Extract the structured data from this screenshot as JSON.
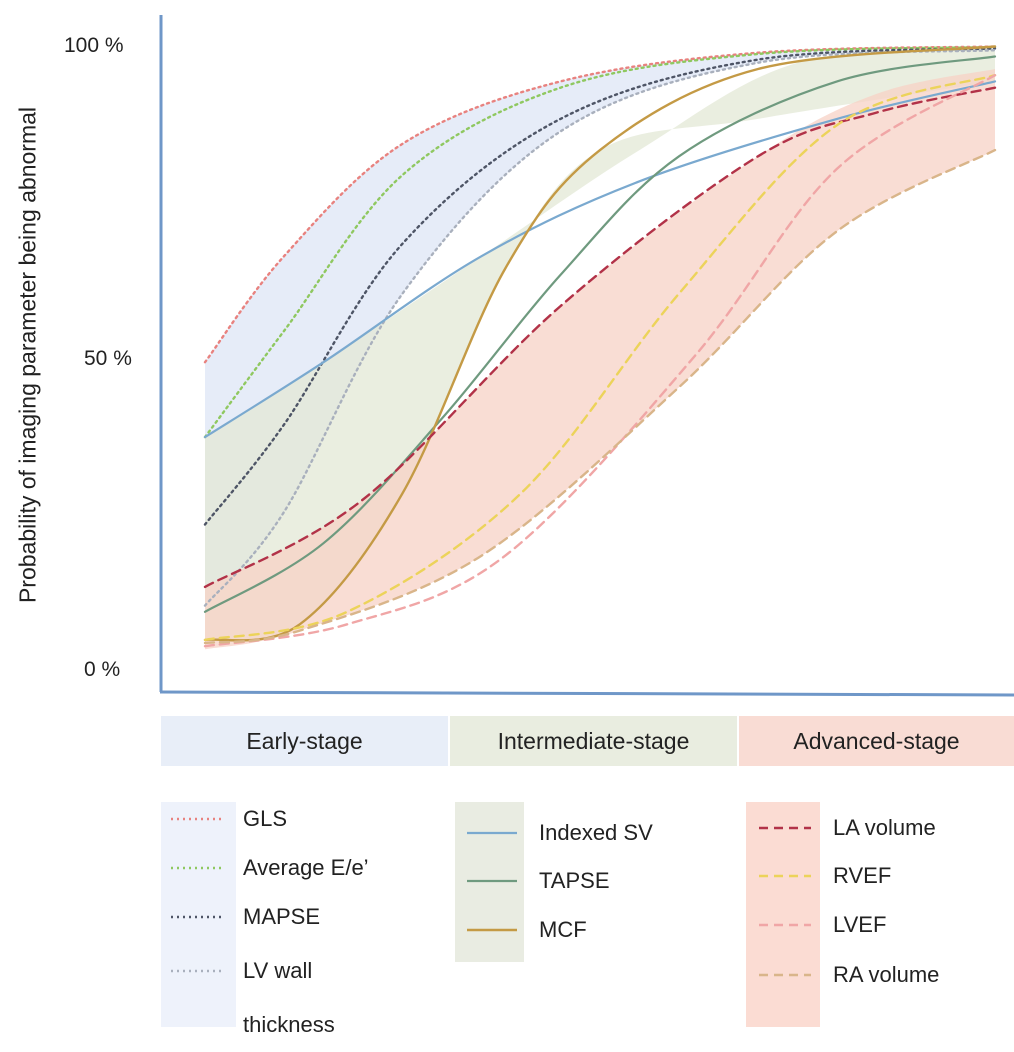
{
  "chart_data": {
    "type": "line",
    "ylabel": "Probability of imaging parameter being abnormal",
    "y_ticks": [
      "100 %",
      "50 %",
      "0 %"
    ],
    "ylim": [
      0,
      100
    ],
    "xlim": [
      0,
      100
    ],
    "grid": false,
    "x_stages": [
      {
        "label": "Early-stage",
        "color": "#e8eef8"
      },
      {
        "label": "Intermediate-stage",
        "color": "#e9ede0"
      },
      {
        "label": "Advanced-stage",
        "color": "#f9dcd4"
      }
    ],
    "bands": [
      {
        "group": "early",
        "color": "#dde6f6",
        "upper": [
          [
            0,
            49
          ],
          [
            10,
            66
          ],
          [
            25,
            84
          ],
          [
            45,
            94
          ],
          [
            70,
            98.6
          ],
          [
            100,
            99.6
          ]
        ],
        "lower": [
          [
            0,
            10
          ],
          [
            10,
            25
          ],
          [
            25,
            60
          ],
          [
            45,
            86
          ],
          [
            70,
            97
          ],
          [
            100,
            99
          ]
        ]
      },
      {
        "group": "intermediate",
        "color": "#e3e8d6",
        "upper": [
          [
            0,
            37
          ],
          [
            15,
            49
          ],
          [
            35,
            66
          ],
          [
            55,
            83
          ],
          [
            75,
            97
          ],
          [
            100,
            99.6
          ]
        ],
        "lower": [
          [
            0,
            4.5
          ],
          [
            12,
            7
          ],
          [
            25,
            28
          ],
          [
            38,
            64
          ],
          [
            50,
            83
          ],
          [
            70,
            88
          ],
          [
            100,
            94
          ]
        ]
      },
      {
        "group": "advanced",
        "color": "#f7d1c6",
        "upper": [
          [
            0,
            13
          ],
          [
            20,
            27
          ],
          [
            45,
            58
          ],
          [
            70,
            82
          ],
          [
            85,
            92
          ],
          [
            100,
            96
          ]
        ],
        "lower": [
          [
            0,
            3
          ],
          [
            12,
            6
          ],
          [
            35,
            18
          ],
          [
            60,
            45
          ],
          [
            80,
            70
          ],
          [
            100,
            83
          ]
        ]
      }
    ],
    "series": [
      {
        "name": "GLS",
        "group": "early",
        "color": "#e8827f",
        "dash": "2,4",
        "width": 2.4,
        "points": [
          [
            0,
            49
          ],
          [
            10,
            66
          ],
          [
            25,
            84
          ],
          [
            45,
            94
          ],
          [
            70,
            98.6
          ],
          [
            100,
            99.6
          ]
        ]
      },
      {
        "name": "Average E/e’",
        "group": "early",
        "color": "#8fc860",
        "dash": "2,4",
        "width": 2.4,
        "points": [
          [
            0,
            37
          ],
          [
            10,
            54
          ],
          [
            25,
            79
          ],
          [
            45,
            93
          ],
          [
            70,
            98.4
          ],
          [
            100,
            99.5
          ]
        ]
      },
      {
        "name": "MAPSE",
        "group": "early",
        "color": "#4e5566",
        "dash": "2,4",
        "width": 2.4,
        "points": [
          [
            0,
            23
          ],
          [
            10,
            39
          ],
          [
            25,
            68
          ],
          [
            45,
            88
          ],
          [
            70,
            97.5
          ],
          [
            100,
            99.3
          ]
        ]
      },
      {
        "name": "LV wall thickness",
        "group": "early",
        "color": "#a9b0bd",
        "dash": "2,4",
        "width": 2.4,
        "points": [
          [
            0,
            10
          ],
          [
            10,
            25
          ],
          [
            25,
            60
          ],
          [
            45,
            86
          ],
          [
            70,
            97
          ],
          [
            100,
            99
          ]
        ]
      },
      {
        "name": "Indexed SV",
        "group": "intermediate",
        "color": "#7aa9cf",
        "dash": "",
        "width": 2.2,
        "points": [
          [
            0,
            37
          ],
          [
            15,
            49
          ],
          [
            35,
            66
          ],
          [
            55,
            78
          ],
          [
            80,
            88
          ],
          [
            100,
            94
          ]
        ]
      },
      {
        "name": "TAPSE",
        "group": "intermediate",
        "color": "#6f9a7f",
        "dash": "",
        "width": 2.2,
        "points": [
          [
            0,
            9
          ],
          [
            15,
            20
          ],
          [
            30,
            40
          ],
          [
            45,
            63
          ],
          [
            60,
            82
          ],
          [
            80,
            94
          ],
          [
            100,
            98
          ]
        ]
      },
      {
        "name": "MCF",
        "group": "intermediate",
        "color": "#c49a45",
        "dash": "",
        "width": 2.4,
        "points": [
          [
            0,
            4.5
          ],
          [
            12,
            7
          ],
          [
            25,
            28
          ],
          [
            38,
            64
          ],
          [
            50,
            83
          ],
          [
            70,
            96
          ],
          [
            100,
            99.6
          ]
        ]
      },
      {
        "name": "LA volume",
        "group": "advanced",
        "color": "#b23248",
        "dash": "9,6",
        "width": 2.4,
        "points": [
          [
            0,
            13
          ],
          [
            20,
            27
          ],
          [
            45,
            58
          ],
          [
            70,
            82
          ],
          [
            85,
            89
          ],
          [
            100,
            93
          ]
        ]
      },
      {
        "name": "RVEF",
        "group": "advanced",
        "color": "#ecd35a",
        "dash": "9,6",
        "width": 2.4,
        "points": [
          [
            0,
            4.5
          ],
          [
            18,
            9
          ],
          [
            40,
            28
          ],
          [
            60,
            60
          ],
          [
            80,
            87
          ],
          [
            100,
            95
          ]
        ]
      },
      {
        "name": "LVEF",
        "group": "advanced",
        "color": "#f0a6a6",
        "dash": "9,6",
        "width": 2.4,
        "points": [
          [
            0,
            3.5
          ],
          [
            18,
            7
          ],
          [
            38,
            18
          ],
          [
            62,
            50
          ],
          [
            80,
            80
          ],
          [
            100,
            95
          ]
        ]
      },
      {
        "name": "RA volume",
        "group": "advanced",
        "color": "#d9b58a",
        "dash": "9,6",
        "width": 2.4,
        "points": [
          [
            0,
            4
          ],
          [
            12,
            6
          ],
          [
            35,
            18
          ],
          [
            60,
            45
          ],
          [
            80,
            70
          ],
          [
            100,
            83
          ]
        ]
      }
    ]
  },
  "legend": {
    "early": [
      {
        "label": "GLS"
      },
      {
        "label": "Average E/e’"
      },
      {
        "label": "MAPSE"
      },
      {
        "label": "LV wall thickness"
      }
    ],
    "intermediate": [
      {
        "label": "Indexed SV"
      },
      {
        "label": "TAPSE"
      },
      {
        "label": "MCF"
      }
    ],
    "advanced": [
      {
        "label": "LA volume"
      },
      {
        "label": "RVEF"
      },
      {
        "label": "LVEF"
      },
      {
        "label": "RA volume"
      }
    ]
  },
  "colors": {
    "axis": "#6f97c8",
    "legend_early_bg": "#eef2fb",
    "legend_intermediate_bg": "#e9ece2",
    "legend_advanced_bg": "#fbdcd3"
  }
}
